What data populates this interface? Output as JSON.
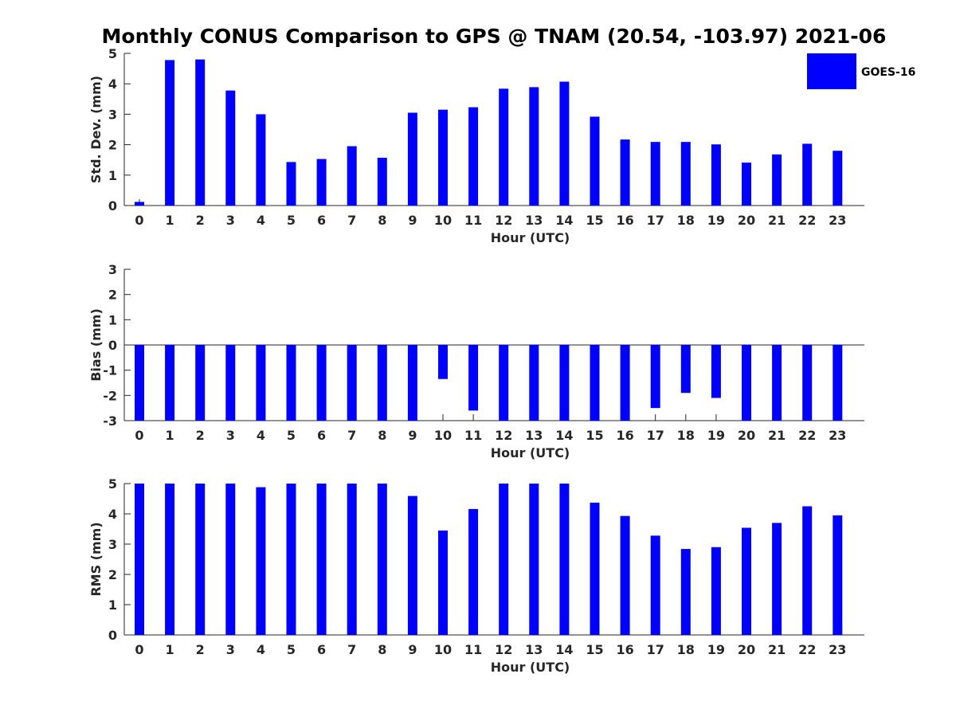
{
  "chart_data": {
    "type": "bar",
    "title": "Monthly CONUS Comparison to GPS @ TNAM (20.54, -103.97) 2021-06",
    "legend": {
      "label": "GOES-16",
      "placement": "top-right",
      "color": "#0000ff"
    },
    "bar_color": "#0000ff",
    "categories": [
      "0",
      "1",
      "2",
      "3",
      "4",
      "5",
      "6",
      "7",
      "8",
      "9",
      "10",
      "11",
      "12",
      "13",
      "14",
      "15",
      "16",
      "17",
      "18",
      "19",
      "20",
      "21",
      "22",
      "23"
    ],
    "panels": [
      {
        "ylabel": "Std. Dev. (mm)",
        "xlabel": "Hour (UTC)",
        "ylim": [
          0,
          5
        ],
        "yticks": [
          "0",
          "1",
          "2",
          "3",
          "4",
          "5"
        ],
        "values": [
          0.12,
          4.78,
          4.8,
          3.78,
          3.0,
          1.43,
          1.53,
          1.95,
          1.57,
          3.05,
          3.15,
          3.23,
          3.84,
          3.89,
          4.07,
          2.92,
          2.17,
          2.09,
          2.09,
          2.01,
          1.41,
          1.68,
          2.03,
          1.8
        ]
      },
      {
        "ylabel": "Bias (mm)",
        "xlabel": "Hour (UTC)",
        "ylim": [
          -3,
          3
        ],
        "yticks": [
          "-3",
          "-2",
          "-1",
          "0",
          "1",
          "2",
          "3"
        ],
        "values": [
          -3.0,
          -3.0,
          -3.0,
          -3.0,
          -3.0,
          -3.0,
          -3.0,
          -3.0,
          -3.0,
          -3.0,
          -1.35,
          -2.6,
          -3.0,
          -3.0,
          -3.0,
          -3.0,
          -3.0,
          -2.5,
          -1.9,
          -2.1,
          -3.0,
          -3.0,
          -3.0,
          -3.0
        ]
      },
      {
        "ylabel": "RMS (mm)",
        "xlabel": "Hour (UTC)",
        "ylim": [
          0,
          5
        ],
        "yticks": [
          "0",
          "1",
          "2",
          "3",
          "4",
          "5"
        ],
        "values": [
          5.0,
          5.0,
          5.0,
          5.0,
          4.88,
          5.0,
          5.0,
          5.0,
          5.0,
          4.59,
          3.45,
          4.16,
          5.0,
          5.0,
          5.0,
          4.37,
          3.93,
          3.28,
          2.84,
          2.9,
          3.54,
          3.7,
          4.25,
          3.95
        ]
      }
    ]
  }
}
